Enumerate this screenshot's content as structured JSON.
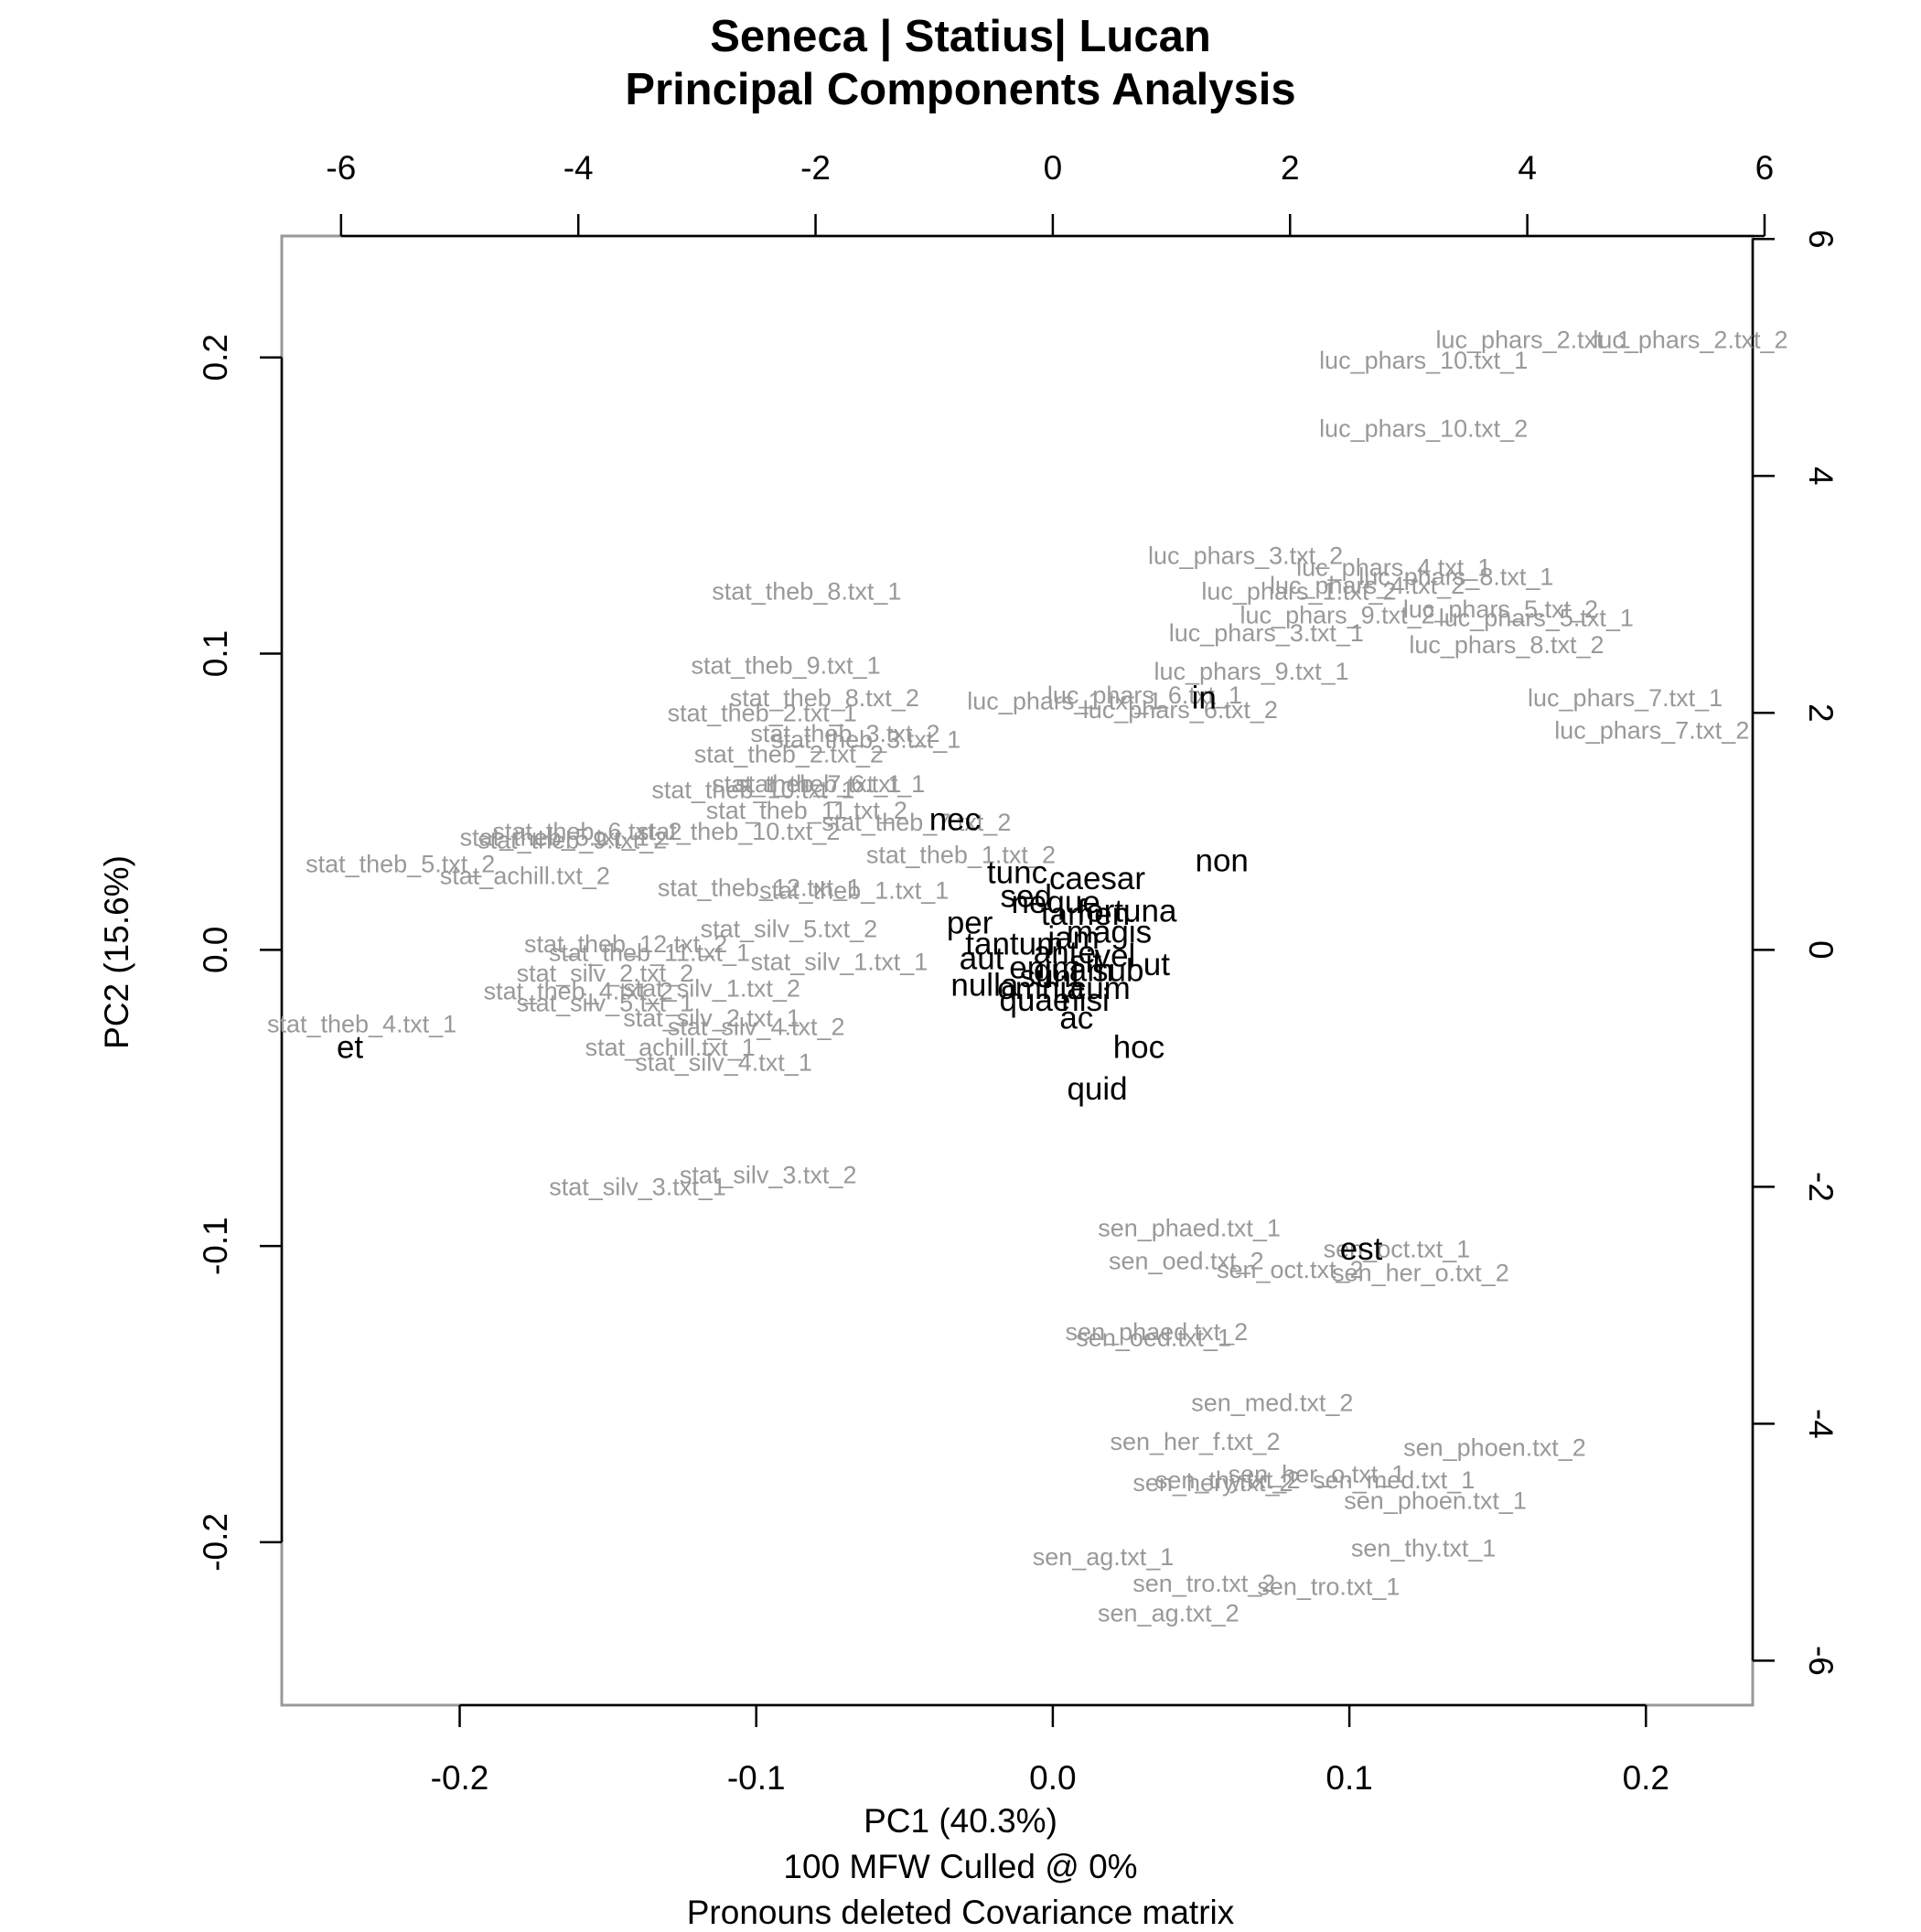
{
  "chart_data": {
    "type": "scatter",
    "title": "Seneca | Statius| Lucan",
    "subtitle": "Principal Components Analysis",
    "xlabel": "PC1 (40.3%)",
    "ylabel": "PC2 (15.6%)",
    "caption_lines": [
      "100 MFW  Culled @ 0%",
      "Pronouns deleted Covariance matrix"
    ],
    "xlim": [
      -0.26,
      0.236
    ],
    "ylim": [
      -0.255,
      0.241
    ],
    "x_ticks": [
      -0.2,
      -0.1,
      0.0,
      0.1,
      0.2
    ],
    "x_tick_labels": [
      "-0.2",
      "-0.1",
      "0.0",
      "0.1",
      "0.2"
    ],
    "y_ticks": [
      -0.2,
      -0.1,
      0.0,
      0.1,
      0.2
    ],
    "y_tick_labels": [
      "-0.2",
      "-0.1",
      "0.0",
      "0.1",
      "0.2"
    ],
    "top_axis": {
      "ticks": [
        -6,
        -4,
        -2,
        0,
        2,
        4,
        6
      ],
      "tick_labels": [
        "-6",
        "-4",
        "-2",
        "0",
        "2",
        "4",
        "6"
      ],
      "scale_per_unit": 0.04
    },
    "right_axis": {
      "ticks": [
        6,
        4,
        2,
        0,
        -2,
        -4,
        -6
      ],
      "tick_labels": [
        "6",
        "4",
        "2",
        "0",
        "-2",
        "-4",
        "-6"
      ],
      "scale_per_unit": 0.04
    },
    "colors": {
      "samples": "#999999",
      "loadings": "#000000",
      "axes": "#000000",
      "frame": "#999999"
    },
    "samples": [
      {
        "label": "luc_phars_2.txt_1",
        "x": 0.162,
        "y": 0.206
      },
      {
        "label": "luc_phars_2.txt_2",
        "x": 0.215,
        "y": 0.206
      },
      {
        "label": "luc_phars_10.txt_1",
        "x": 0.125,
        "y": 0.199
      },
      {
        "label": "luc_phars_10.txt_2",
        "x": 0.125,
        "y": 0.176
      },
      {
        "label": "luc_phars_3.txt_2",
        "x": 0.065,
        "y": 0.133
      },
      {
        "label": "luc_phars_4.txt_1",
        "x": 0.115,
        "y": 0.129
      },
      {
        "label": "luc_phars_8.txt_1",
        "x": 0.136,
        "y": 0.126
      },
      {
        "label": "luc_phars_1.txt_2",
        "x": 0.083,
        "y": 0.121
      },
      {
        "label": "luc_phars_4.txt_2",
        "x": 0.106,
        "y": 0.123
      },
      {
        "label": "luc_phars_9.txt_2",
        "x": 0.096,
        "y": 0.113
      },
      {
        "label": "luc_phars_5.txt_2",
        "x": 0.151,
        "y": 0.115
      },
      {
        "label": "luc_phars_5.txt_1",
        "x": 0.163,
        "y": 0.112
      },
      {
        "label": "luc_phars_3.txt_1",
        "x": 0.072,
        "y": 0.107
      },
      {
        "label": "luc_phars_8.txt_2",
        "x": 0.153,
        "y": 0.103
      },
      {
        "label": "luc_phars_9.txt_1",
        "x": 0.067,
        "y": 0.094
      },
      {
        "label": "luc_phars_1.txt_1",
        "x": 0.004,
        "y": 0.084
      },
      {
        "label": "luc_phars_6.txt_1",
        "x": 0.031,
        "y": 0.086
      },
      {
        "label": "luc_phars_6.txt_2",
        "x": 0.043,
        "y": 0.081
      },
      {
        "label": "luc_phars_7.txt_1",
        "x": 0.193,
        "y": 0.085
      },
      {
        "label": "luc_phars_7.txt_2",
        "x": 0.202,
        "y": 0.074
      },
      {
        "label": "stat_theb_8.txt_1",
        "x": -0.083,
        "y": 0.121
      },
      {
        "label": "stat_theb_9.txt_1",
        "x": -0.09,
        "y": 0.096
      },
      {
        "label": "stat_theb_8.txt_2",
        "x": -0.077,
        "y": 0.085
      },
      {
        "label": "stat_theb_2.txt_1",
        "x": -0.098,
        "y": 0.08
      },
      {
        "label": "stat_theb_3.txt_2",
        "x": -0.07,
        "y": 0.073
      },
      {
        "label": "stat_theb_3.txt_1",
        "x": -0.063,
        "y": 0.071
      },
      {
        "label": "stat_theb_2.txt_2",
        "x": -0.089,
        "y": 0.066
      },
      {
        "label": "stat_theb_7.txt_1",
        "x": -0.083,
        "y": 0.056
      },
      {
        "label": "stat_theb_6.txt_1",
        "x": -0.075,
        "y": 0.056
      },
      {
        "label": "stat_theb_10.txt_1",
        "x": -0.101,
        "y": 0.054
      },
      {
        "label": "stat_theb_11.txt_2",
        "x": -0.083,
        "y": 0.047
      },
      {
        "label": "stat_theb_10.txt_2",
        "x": -0.106,
        "y": 0.04
      },
      {
        "label": "stat_theb_7.txt_2",
        "x": -0.046,
        "y": 0.043
      },
      {
        "label": "stat_theb_6.txt_2",
        "x": -0.157,
        "y": 0.04
      },
      {
        "label": "stat_theb_5.txt_1",
        "x": -0.168,
        "y": 0.038
      },
      {
        "label": "stat_theb_9.txt_2",
        "x": -0.162,
        "y": 0.037
      },
      {
        "label": "stat_theb_1.txt_2",
        "x": -0.031,
        "y": 0.032
      },
      {
        "label": "stat_theb_5.txt_2",
        "x": -0.22,
        "y": 0.029
      },
      {
        "label": "stat_achill.txt_2",
        "x": -0.178,
        "y": 0.025
      },
      {
        "label": "stat_theb_12.txt_1",
        "x": -0.099,
        "y": 0.021
      },
      {
        "label": "stat_theb_1.txt_1",
        "x": -0.067,
        "y": 0.02
      },
      {
        "label": "stat_silv_5.txt_2",
        "x": -0.089,
        "y": 0.007
      },
      {
        "label": "stat_theb_12.txt_2",
        "x": -0.144,
        "y": 0.002
      },
      {
        "label": "stat_theb_11.txt_1",
        "x": -0.136,
        "y": -0.001
      },
      {
        "label": "stat_silv_1.txt_1",
        "x": -0.072,
        "y": -0.004
      },
      {
        "label": "stat_silv_2.txt_2",
        "x": -0.151,
        "y": -0.008
      },
      {
        "label": "stat_theb_4.txt_2",
        "x": -0.16,
        "y": -0.014
      },
      {
        "label": "stat_silv_1.txt_2",
        "x": -0.115,
        "y": -0.013
      },
      {
        "label": "stat_silv_5.txt_1",
        "x": -0.151,
        "y": -0.018
      },
      {
        "label": "stat_silv_2.txt_1",
        "x": -0.115,
        "y": -0.023
      },
      {
        "label": "stat_silv_4.txt_2",
        "x": -0.1,
        "y": -0.026
      },
      {
        "label": "stat_theb_4.txt_1",
        "x": -0.233,
        "y": -0.025
      },
      {
        "label": "stat_achill.txt_1",
        "x": -0.129,
        "y": -0.033
      },
      {
        "label": "stat_silv_4.txt_1",
        "x": -0.111,
        "y": -0.038
      },
      {
        "label": "stat_silv_3.txt_2",
        "x": -0.096,
        "y": -0.076
      },
      {
        "label": "stat_silv_3.txt_1",
        "x": -0.14,
        "y": -0.08
      },
      {
        "label": "sen_phaed.txt_1",
        "x": 0.046,
        "y": -0.094
      },
      {
        "label": "sen_oct.txt_1",
        "x": 0.116,
        "y": -0.101
      },
      {
        "label": "sen_oed.txt_2",
        "x": 0.045,
        "y": -0.105
      },
      {
        "label": "sen_oct.txt_2",
        "x": 0.08,
        "y": -0.108
      },
      {
        "label": "sen_her_o.txt_2",
        "x": 0.124,
        "y": -0.109
      },
      {
        "label": "sen_phaed.txt_2",
        "x": 0.035,
        "y": -0.129
      },
      {
        "label": "sen_oed.txt_1",
        "x": 0.034,
        "y": -0.131
      },
      {
        "label": "sen_med.txt_2",
        "x": 0.074,
        "y": -0.153
      },
      {
        "label": "sen_her_f.txt_2",
        "x": 0.048,
        "y": -0.166
      },
      {
        "label": "sen_phoen.txt_2",
        "x": 0.149,
        "y": -0.168
      },
      {
        "label": "sen_her_o.txt_1",
        "x": 0.089,
        "y": -0.177
      },
      {
        "label": "sen_hery.txt_2",
        "x": 0.054,
        "y": -0.18
      },
      {
        "label": "sen_thy.txt_2",
        "x": 0.059,
        "y": -0.179
      },
      {
        "label": "sen_med.txt_1",
        "x": 0.115,
        "y": -0.179
      },
      {
        "label": "sen_phoen.txt_1",
        "x": 0.129,
        "y": -0.186
      },
      {
        "label": "sen_thy.txt_1",
        "x": 0.125,
        "y": -0.202
      },
      {
        "label": "sen_ag.txt_1",
        "x": 0.017,
        "y": -0.205
      },
      {
        "label": "sen_tro.txt_2",
        "x": 0.051,
        "y": -0.214
      },
      {
        "label": "sen_tro.txt_1",
        "x": 0.093,
        "y": -0.215
      },
      {
        "label": "sen_ag.txt_2",
        "x": 0.039,
        "y": -0.224
      }
    ],
    "loadings": [
      {
        "label": "in",
        "x": 0.051,
        "y": 0.085
      },
      {
        "label": "nec",
        "x": -0.033,
        "y": 0.044
      },
      {
        "label": "non",
        "x": 0.057,
        "y": 0.03
      },
      {
        "label": "tunc",
        "x": -0.012,
        "y": 0.026
      },
      {
        "label": "caesar",
        "x": 0.015,
        "y": 0.024
      },
      {
        "label": "sed",
        "x": -0.009,
        "y": 0.018
      },
      {
        "label": "neque",
        "x": 0.001,
        "y": 0.016
      },
      {
        "label": "tamen",
        "x": 0.011,
        "y": 0.012
      },
      {
        "label": "fortuna",
        "x": 0.025,
        "y": 0.013
      },
      {
        "label": "per",
        "x": -0.028,
        "y": 0.009
      },
      {
        "label": "magis",
        "x": 0.019,
        "y": 0.006
      },
      {
        "label": "jam",
        "x": 0.007,
        "y": 0.004
      },
      {
        "label": "tantum",
        "x": -0.013,
        "y": 0.002
      },
      {
        "label": "ante",
        "x": 0.004,
        "y": -0.001
      },
      {
        "label": "vel",
        "x": 0.021,
        "y": -0.002
      },
      {
        "label": "aut",
        "x": -0.024,
        "y": -0.003
      },
      {
        "label": "sit",
        "x": 0.011,
        "y": -0.004
      },
      {
        "label": "ut",
        "x": 0.035,
        "y": -0.005
      },
      {
        "label": "enim",
        "x": -0.003,
        "y": -0.006
      },
      {
        "label": "quam",
        "x": 0.007,
        "y": -0.007
      },
      {
        "label": "sub",
        "x": 0.022,
        "y": -0.007
      },
      {
        "label": "sunt",
        "x": -0.001,
        "y": -0.009
      },
      {
        "label": "nulla",
        "x": -0.023,
        "y": -0.012
      },
      {
        "label": "cum",
        "x": 0.016,
        "y": -0.013
      },
      {
        "label": "omnia",
        "x": -0.004,
        "y": -0.013
      },
      {
        "label": "quae",
        "x": -0.006,
        "y": -0.017
      },
      {
        "label": "nisi",
        "x": 0.011,
        "y": -0.017
      },
      {
        "label": "ac",
        "x": 0.008,
        "y": -0.023
      },
      {
        "label": "hoc",
        "x": 0.029,
        "y": -0.033
      },
      {
        "label": "quid",
        "x": 0.015,
        "y": -0.047
      },
      {
        "label": "et",
        "x": -0.237,
        "y": -0.033
      },
      {
        "label": "est",
        "x": 0.104,
        "y": -0.101
      }
    ]
  }
}
